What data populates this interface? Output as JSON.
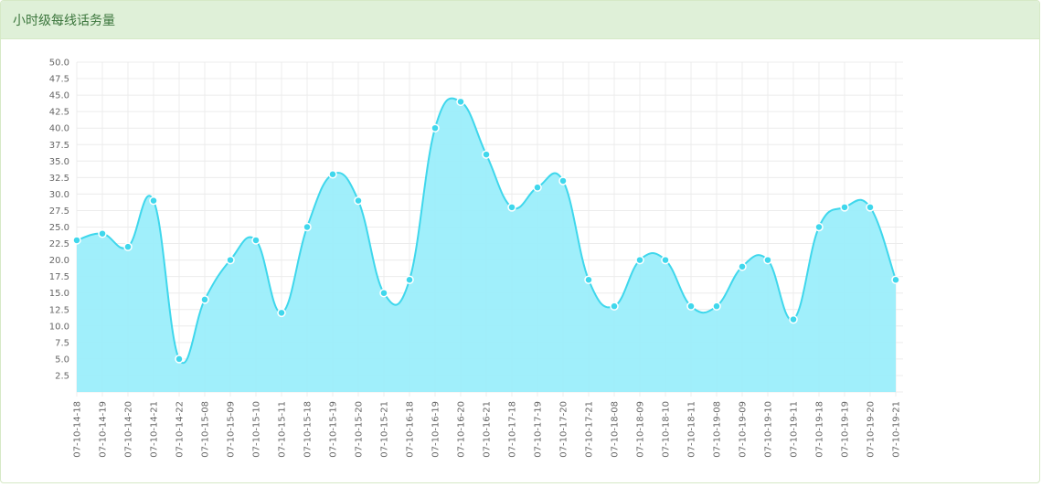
{
  "panel": {
    "title": "小时级每线话务量"
  },
  "colors": {
    "line": "#3fd7ec",
    "fill": "#9beefb",
    "grid": "#ececec",
    "heading_bg": "#dff0d8",
    "heading_text": "#3c763d"
  },
  "chart_data": {
    "type": "area",
    "title": "",
    "xlabel": "",
    "ylabel": "",
    "ylim": [
      0,
      50
    ],
    "ytick_step": 2.5,
    "grid": true,
    "categories": [
      "07-10-14-18",
      "07-10-14-19",
      "07-10-14-20",
      "07-10-14-21",
      "07-10-14-22",
      "07-10-15-08",
      "07-10-15-09",
      "07-10-15-10",
      "07-10-15-11",
      "07-10-15-18",
      "07-10-15-19",
      "07-10-15-20",
      "07-10-15-21",
      "07-10-16-18",
      "07-10-16-19",
      "07-10-16-20",
      "07-10-16-21",
      "07-10-17-18",
      "07-10-17-19",
      "07-10-17-20",
      "07-10-17-21",
      "07-10-18-08",
      "07-10-18-09",
      "07-10-18-10",
      "07-10-18-11",
      "07-10-19-08",
      "07-10-19-09",
      "07-10-19-10",
      "07-10-19-11",
      "07-10-19-18",
      "07-10-19-19",
      "07-10-19-20",
      "07-10-19-21"
    ],
    "series": [
      {
        "values": [
          23,
          24,
          22,
          29,
          5,
          14,
          20,
          23,
          12,
          25,
          33,
          29,
          15,
          17,
          40,
          44,
          36,
          28,
          31,
          32,
          17,
          13,
          20,
          20,
          13,
          13,
          19,
          20,
          11,
          25,
          28,
          28,
          17
        ]
      }
    ]
  }
}
